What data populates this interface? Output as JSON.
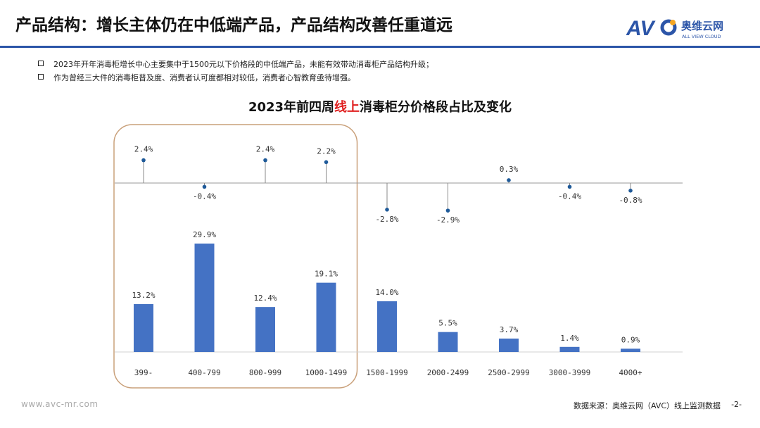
{
  "header": {
    "title": "产品结构：增长主体仍在中低端产品，产品结构改善任重道远",
    "logo_text": "奥维云网",
    "logo_sub": "ALL VIEW CLOUD"
  },
  "bullets": [
    "2023年开年消毒柜增长中心主要集中于1500元以下价格段的中低端产品，未能有效带动消毒柜产品结构升级；",
    "作为曾经三大件的消毒柜普及度、消费者认可度都相对较低，消费者心智教育亟待增强。"
  ],
  "chart_data": {
    "type": "bar",
    "title_prefix": "2023年前四周",
    "title_highlight": "线上",
    "title_suffix": "消毒柜分价格段占比及变化",
    "categories": [
      "399-",
      "400-799",
      "800-999",
      "1000-1499",
      "1500-1999",
      "2000-2499",
      "2500-2999",
      "3000-3999",
      "4000+"
    ],
    "series": [
      {
        "values": [
          13.2,
          29.9,
          12.4,
          19.1,
          14.0,
          5.5,
          3.7,
          1.4,
          0.9
        ],
        "labels": [
          "13.2%",
          "29.9%",
          "12.4%",
          "19.1%",
          "14.0%",
          "5.5%",
          "3.7%",
          "1.4%",
          "0.9%"
        ]
      },
      {
        "values": [
          2.4,
          -0.4,
          2.4,
          2.2,
          -2.8,
          -2.9,
          0.3,
          -0.4,
          -0.8
        ],
        "labels": [
          "2.4%",
          "-0.4%",
          "2.4%",
          "2.2%",
          "-2.8%",
          "-2.9%",
          "0.3%",
          "-0.4%",
          "-0.8%"
        ]
      }
    ],
    "highlight_group": [
      0,
      3
    ],
    "colors": {
      "bar": "#4472c4",
      "dot": "#1f5a99",
      "highlight_box": "#c9a07a",
      "title_highlight": "#e01e1e"
    }
  },
  "footer": {
    "website": "www.avc-mr.com",
    "source": "数据来源：奥维云网（AVC）线上监测数据",
    "page": "-2-"
  }
}
